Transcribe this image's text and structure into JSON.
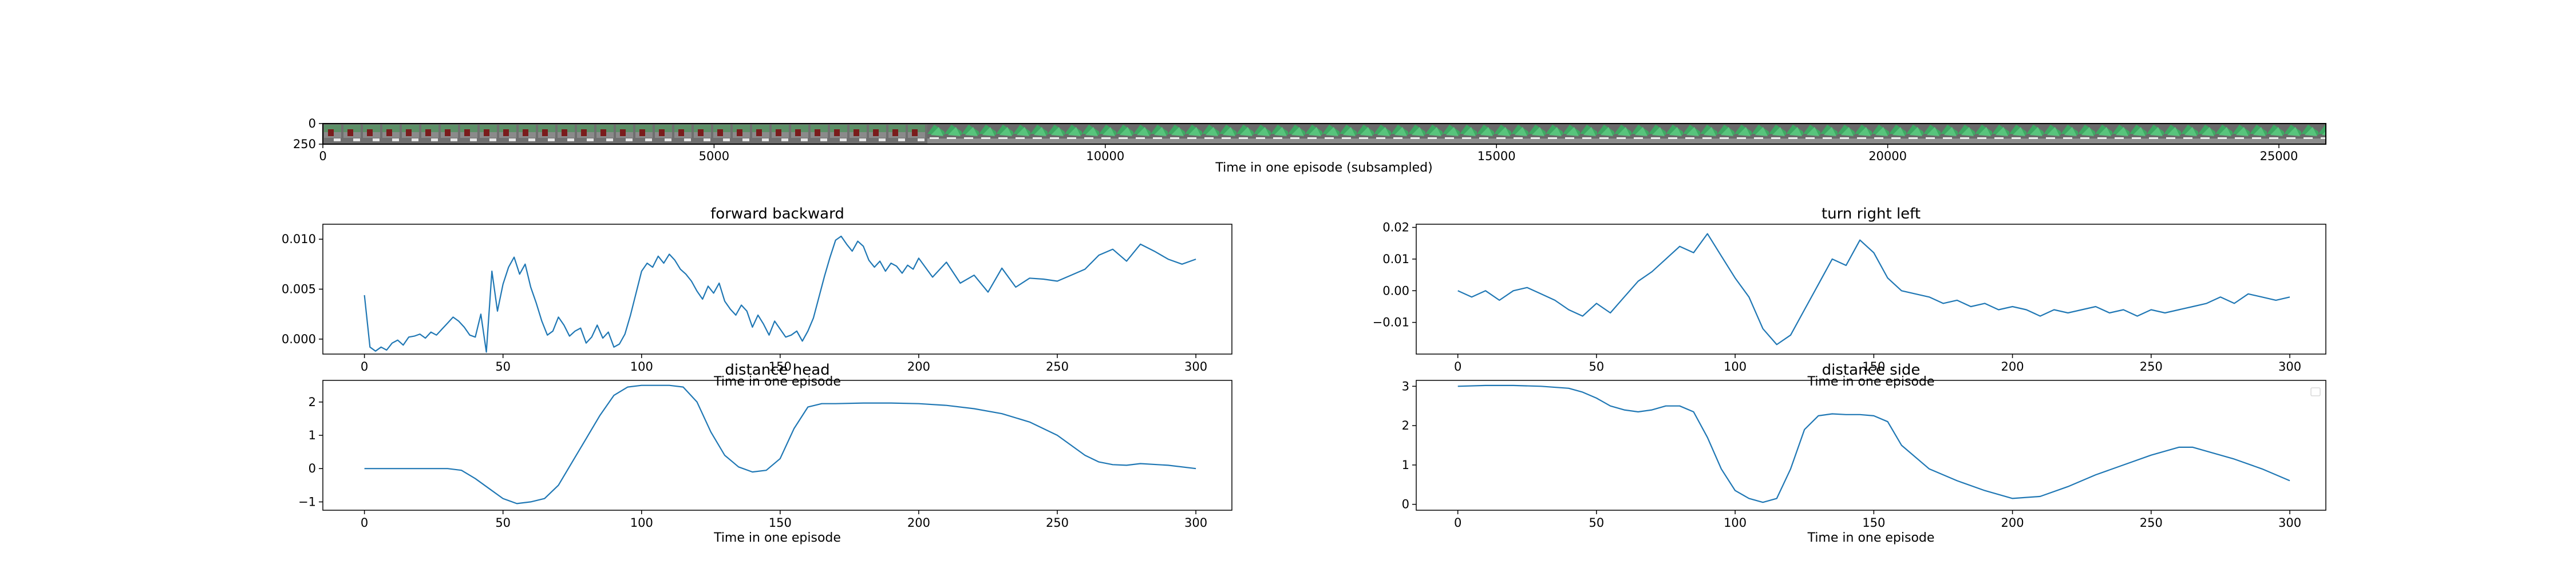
{
  "chart_data": [
    {
      "id": "filmstrip",
      "type": "image",
      "xlabel": "Time in one episode (subsampled)",
      "xticks": [
        0,
        5000,
        10000,
        15000,
        20000,
        25000
      ],
      "yticks": [
        0,
        250
      ],
      "xlim": [
        0,
        25600
      ],
      "ylim": [
        0,
        250
      ]
    },
    {
      "id": "forward-backward",
      "type": "line",
      "title": "forward backward",
      "xlabel": "Time in one episode",
      "ylabel": "",
      "xlim": [
        -15,
        313
      ],
      "ylim": [
        -0.0015,
        0.0115
      ],
      "xticks": [
        0,
        50,
        100,
        150,
        200,
        250,
        300
      ],
      "yticks": [
        0.0,
        0.005,
        0.01
      ],
      "ytick_labels": [
        "0.000",
        "0.005",
        "0.010"
      ],
      "color": "#1f77b4",
      "series": [
        {
          "x": [
            0,
            2,
            4,
            6,
            8,
            10,
            12,
            14,
            16,
            18,
            20,
            22,
            24,
            26,
            28,
            30,
            32,
            34,
            36,
            38,
            40,
            42,
            44,
            46,
            48,
            50,
            52,
            54,
            56,
            58,
            60,
            62,
            64,
            66,
            68,
            70,
            72,
            74,
            76,
            78,
            80,
            82,
            84,
            86,
            88,
            90,
            92,
            94,
            96,
            98,
            100,
            102,
            104,
            106,
            108,
            110,
            112,
            114,
            116,
            118,
            120,
            122,
            124,
            126,
            128,
            130,
            132,
            134,
            136,
            138,
            140,
            142,
            144,
            146,
            148,
            150,
            152,
            154,
            156,
            158,
            160,
            162,
            164,
            166,
            168,
            170,
            172,
            174,
            176,
            178,
            180,
            182,
            184,
            186,
            188,
            190,
            192,
            194,
            196,
            198,
            200,
            205,
            210,
            215,
            220,
            225,
            230,
            235,
            240,
            245,
            250,
            255,
            260,
            265,
            270,
            275,
            280,
            285,
            290,
            295,
            300
          ],
          "y": [
            0.0044,
            -0.0008,
            -0.0012,
            -0.0008,
            -0.0011,
            -0.0004,
            -0.0001,
            -0.0006,
            0.0002,
            0.0003,
            0.0005,
            0.0001,
            0.0007,
            0.0004,
            0.001,
            0.0016,
            0.0022,
            0.0018,
            0.0012,
            0.0004,
            0.0002,
            0.0025,
            -0.0013,
            0.0068,
            0.0028,
            0.0055,
            0.0072,
            0.0082,
            0.0065,
            0.0075,
            0.0052,
            0.0036,
            0.0018,
            0.0004,
            0.0008,
            0.0022,
            0.0014,
            0.0003,
            0.0008,
            0.0011,
            -0.0004,
            0.0002,
            0.0014,
            0.0001,
            0.0007,
            -0.0008,
            -0.0005,
            0.0005,
            0.0024,
            0.0046,
            0.0068,
            0.0076,
            0.0072,
            0.0083,
            0.0076,
            0.0085,
            0.0079,
            0.007,
            0.0065,
            0.0058,
            0.0048,
            0.004,
            0.0053,
            0.0046,
            0.0056,
            0.0038,
            0.003,
            0.0024,
            0.0034,
            0.0028,
            0.0012,
            0.0024,
            0.0015,
            0.0004,
            0.0018,
            0.001,
            0.0002,
            0.0004,
            0.0008,
            -0.0002,
            0.0008,
            0.0021,
            0.0042,
            0.0063,
            0.0082,
            0.0099,
            0.0103,
            0.0095,
            0.0088,
            0.0098,
            0.0093,
            0.0079,
            0.0072,
            0.0078,
            0.0068,
            0.0076,
            0.0073,
            0.0066,
            0.0074,
            0.007,
            0.0081,
            0.0062,
            0.0077,
            0.0056,
            0.0064,
            0.0047,
            0.0071,
            0.0052,
            0.0061,
            0.006,
            0.0058,
            0.0064,
            0.007,
            0.0084,
            0.009,
            0.0078,
            0.0095,
            0.0088,
            0.008,
            0.0075,
            0.008
          ]
        }
      ]
    },
    {
      "id": "turn-right-left",
      "type": "line",
      "title": "turn right left",
      "xlabel": "Time in one episode",
      "ylabel": "",
      "xlim": [
        -15,
        313
      ],
      "ylim": [
        -0.02,
        0.021
      ],
      "xticks": [
        0,
        50,
        100,
        150,
        200,
        250,
        300
      ],
      "yticks": [
        -0.01,
        0.0,
        0.01,
        0.02
      ],
      "ytick_labels": [
        "−0.01",
        "0.00",
        "0.01",
        "0.02"
      ],
      "color": "#1f77b4",
      "series": [
        {
          "x": [
            0,
            5,
            10,
            15,
            20,
            25,
            30,
            35,
            40,
            45,
            50,
            55,
            60,
            65,
            70,
            75,
            80,
            85,
            90,
            95,
            100,
            105,
            110,
            115,
            120,
            125,
            130,
            135,
            140,
            145,
            150,
            155,
            160,
            165,
            170,
            175,
            180,
            185,
            190,
            195,
            200,
            205,
            210,
            215,
            220,
            225,
            230,
            235,
            240,
            245,
            250,
            255,
            260,
            265,
            270,
            275,
            280,
            285,
            290,
            295,
            300
          ],
          "y": [
            0.0,
            -0.002,
            0.0,
            -0.003,
            0.0,
            0.001,
            -0.001,
            -0.003,
            -0.006,
            -0.008,
            -0.004,
            -0.007,
            -0.002,
            0.003,
            0.006,
            0.01,
            0.014,
            0.012,
            0.018,
            0.011,
            0.004,
            -0.002,
            -0.012,
            -0.017,
            -0.014,
            -0.006,
            0.002,
            0.01,
            0.008,
            0.016,
            0.012,
            0.004,
            0.0,
            -0.001,
            -0.002,
            -0.004,
            -0.003,
            -0.005,
            -0.004,
            -0.006,
            -0.005,
            -0.006,
            -0.008,
            -0.006,
            -0.007,
            -0.006,
            -0.005,
            -0.007,
            -0.006,
            -0.008,
            -0.006,
            -0.007,
            -0.006,
            -0.005,
            -0.004,
            -0.002,
            -0.004,
            -0.001,
            -0.002,
            -0.003,
            -0.002
          ]
        }
      ]
    },
    {
      "id": "distance-head",
      "type": "line",
      "title": "distance head",
      "xlabel": "Time in one episode",
      "ylabel": "",
      "xlim": [
        -15,
        313
      ],
      "ylim": [
        -1.25,
        2.65
      ],
      "xticks": [
        0,
        50,
        100,
        150,
        200,
        250,
        300
      ],
      "yticks": [
        -1,
        0,
        1,
        2
      ],
      "ytick_labels": [
        "−1",
        "0",
        "1",
        "2"
      ],
      "color": "#1f77b4",
      "series": [
        {
          "x": [
            0,
            10,
            20,
            30,
            35,
            40,
            45,
            50,
            55,
            60,
            65,
            70,
            75,
            80,
            85,
            90,
            95,
            100,
            105,
            110,
            115,
            120,
            125,
            130,
            135,
            140,
            145,
            150,
            155,
            160,
            165,
            170,
            180,
            190,
            200,
            210,
            220,
            230,
            240,
            250,
            255,
            260,
            265,
            270,
            275,
            280,
            290,
            300
          ],
          "y": [
            0.0,
            0.0,
            0.0,
            0.0,
            -0.05,
            -0.3,
            -0.6,
            -0.9,
            -1.05,
            -1.0,
            -0.9,
            -0.5,
            0.2,
            0.9,
            1.6,
            2.2,
            2.45,
            2.5,
            2.5,
            2.5,
            2.45,
            2.0,
            1.1,
            0.4,
            0.05,
            -0.1,
            -0.05,
            0.3,
            1.2,
            1.85,
            1.95,
            1.95,
            1.97,
            1.97,
            1.95,
            1.9,
            1.8,
            1.65,
            1.4,
            1.0,
            0.7,
            0.4,
            0.2,
            0.12,
            0.1,
            0.15,
            0.1,
            0.0
          ]
        }
      ]
    },
    {
      "id": "distance-side",
      "type": "line",
      "title": "distance side",
      "xlabel": "Time in one episode",
      "ylabel": "",
      "xlim": [
        -15,
        313
      ],
      "ylim": [
        -0.15,
        3.15
      ],
      "xticks": [
        0,
        50,
        100,
        150,
        200,
        250,
        300
      ],
      "yticks": [
        0,
        1,
        2,
        3
      ],
      "ytick_labels": [
        "0",
        "1",
        "2",
        "3"
      ],
      "color": "#1f77b4",
      "series": [
        {
          "x": [
            0,
            10,
            20,
            30,
            40,
            45,
            50,
            55,
            60,
            65,
            70,
            75,
            80,
            85,
            90,
            95,
            100,
            105,
            110,
            115,
            120,
            125,
            130,
            135,
            140,
            145,
            150,
            155,
            160,
            170,
            180,
            190,
            200,
            210,
            220,
            230,
            240,
            250,
            260,
            265,
            270,
            280,
            290,
            300
          ],
          "y": [
            3.0,
            3.02,
            3.02,
            3.0,
            2.95,
            2.85,
            2.7,
            2.5,
            2.4,
            2.35,
            2.4,
            2.5,
            2.5,
            2.35,
            1.7,
            0.9,
            0.35,
            0.15,
            0.05,
            0.15,
            0.9,
            1.9,
            2.25,
            2.3,
            2.28,
            2.28,
            2.25,
            2.1,
            1.5,
            0.9,
            0.6,
            0.35,
            0.15,
            0.2,
            0.45,
            0.75,
            1.0,
            1.25,
            1.45,
            1.45,
            1.35,
            1.15,
            0.9,
            0.6
          ]
        }
      ]
    }
  ]
}
